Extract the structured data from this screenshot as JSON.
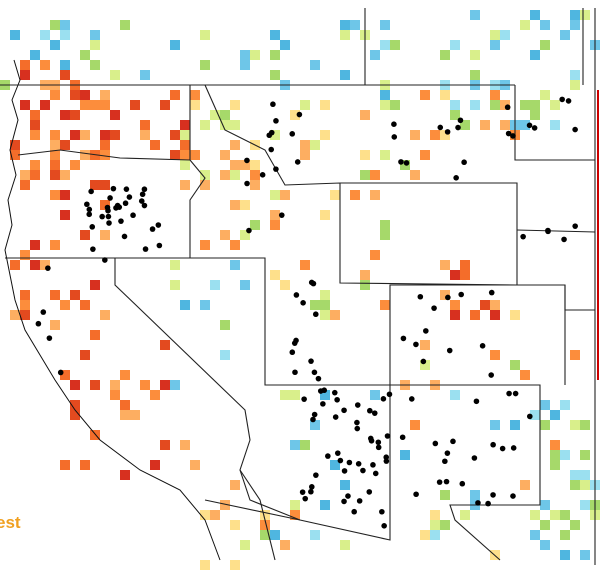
{
  "label": "est"
}
